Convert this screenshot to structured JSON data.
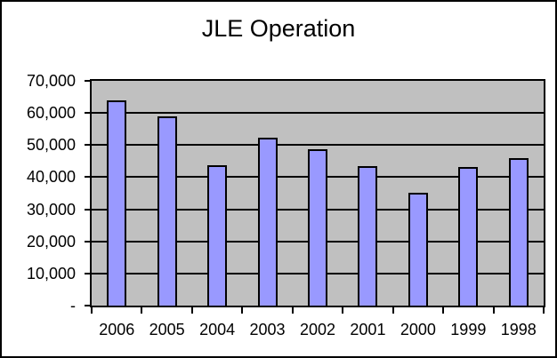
{
  "window": {
    "background_color": "#FFFFFF",
    "border_color": "#000000"
  },
  "chart_data": {
    "type": "bar",
    "title": "JLE Operation",
    "xlabel": "",
    "ylabel": "",
    "categories": [
      "2006",
      "2005",
      "2004",
      "2003",
      "2002",
      "2001",
      "2000",
      "1999",
      "1998"
    ],
    "values": [
      63900,
      58900,
      43600,
      52300,
      48600,
      43400,
      35200,
      43100,
      45900
    ],
    "ylim": [
      0,
      70000
    ],
    "ytick_interval": 10000,
    "yticks": [
      {
        "value": 0,
        "label": "-"
      },
      {
        "value": 10000,
        "label": "10,000"
      },
      {
        "value": 20000,
        "label": "20,000"
      },
      {
        "value": 30000,
        "label": "30,000"
      },
      {
        "value": 40000,
        "label": "40,000"
      },
      {
        "value": 50000,
        "label": "50,000"
      },
      {
        "value": 60000,
        "label": "60,000"
      },
      {
        "value": 70000,
        "label": "70,000"
      }
    ],
    "grid": true,
    "legend_position": "none",
    "bar_fill_color": "#9999FF",
    "bar_border_color": "#000000",
    "plot_background_color": "#C0C0C0",
    "gridline_color": "#000000"
  }
}
